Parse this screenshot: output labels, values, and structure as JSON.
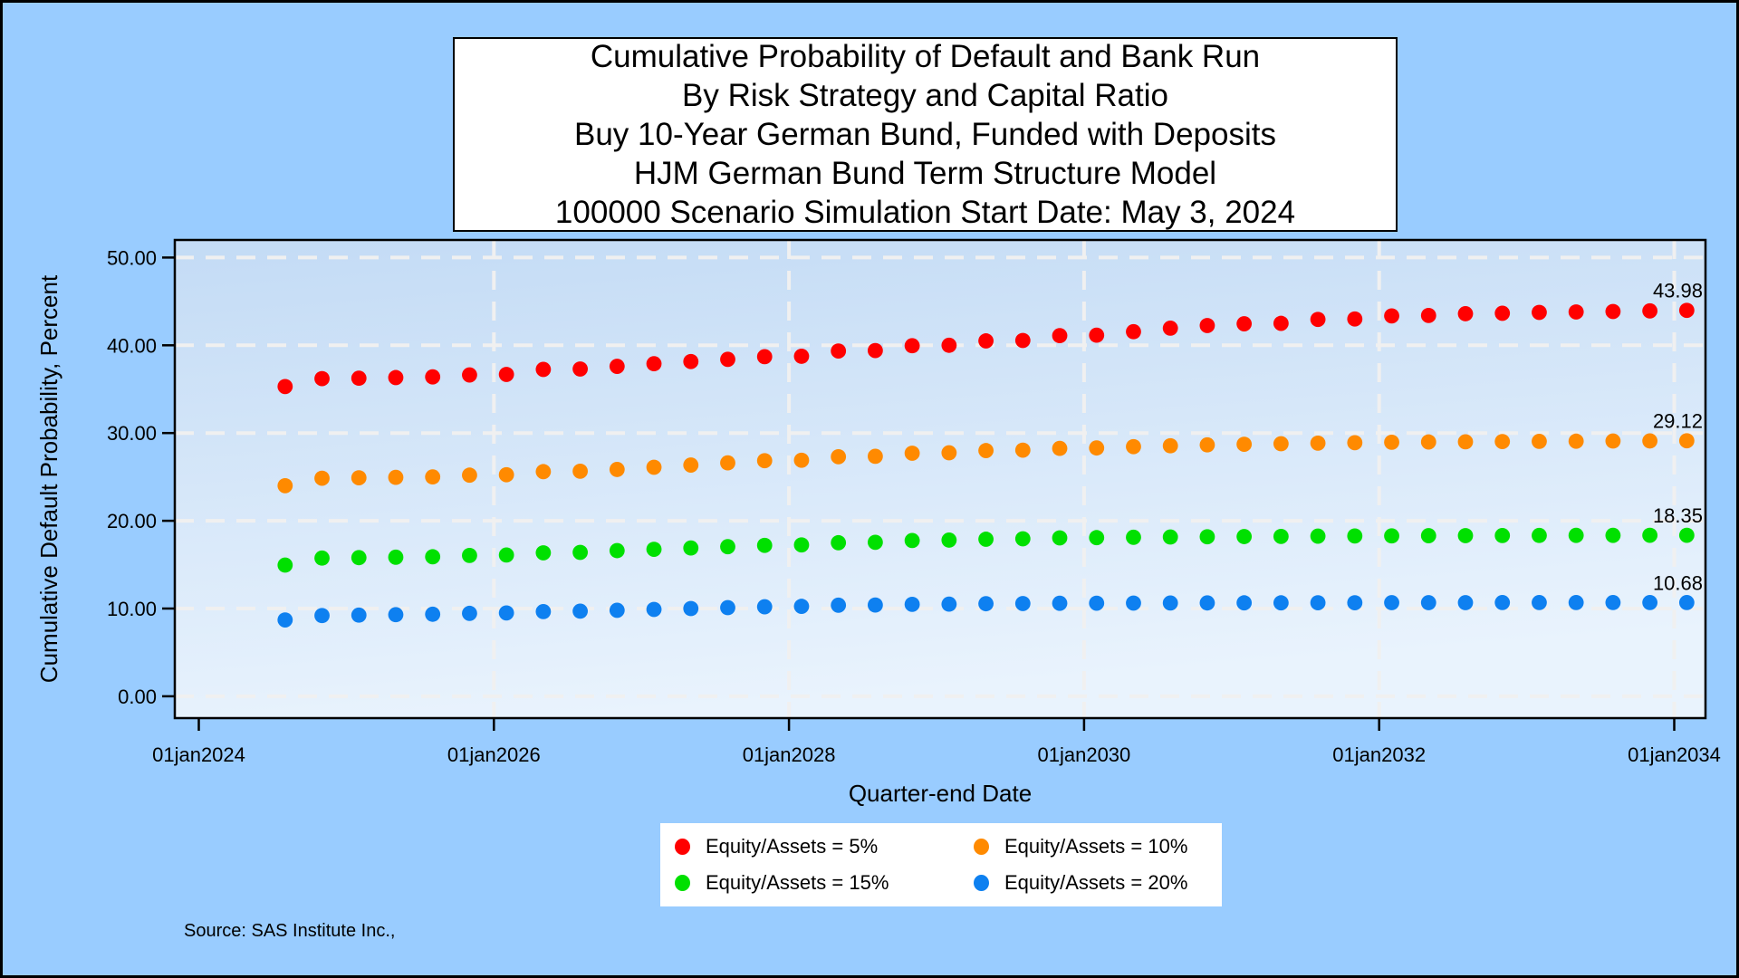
{
  "colors": {
    "page_background": "#99CCFF",
    "title_background": "#FFFFFF",
    "legend_background": "#FFFFFF",
    "plot_gradient_top": "#C3DBF5",
    "plot_gradient_bottom": "#E9F3FD",
    "gridline": "#F0F0F0",
    "frame": "#000000",
    "text": "#000000"
  },
  "chart_data": {
    "type": "scatter",
    "title_lines": [
      "Cumulative Probability of Default and Bank Run",
      "By Risk Strategy and Capital Ratio",
      "Buy 10-Year German Bund, Funded with Deposits",
      "HJM German Bund Term Structure Model",
      "100000 Scenario Simulation Start Date: May 3, 2024"
    ],
    "xlabel": "Quarter-end Date",
    "ylabel": "Cumulative Default Probability, Percent",
    "x_tick_labels": [
      "01jan2024",
      "01jan2026",
      "01jan2028",
      "01jan2030",
      "01jan2032",
      "01jan2034"
    ],
    "y_tick_labels": [
      "0.00",
      "10.00",
      "20.00",
      "30.00",
      "40.00",
      "50.00"
    ],
    "y_tick_values": [
      0,
      10,
      20,
      30,
      40,
      50
    ],
    "ylim": [
      0,
      50
    ],
    "grid": "dashed white lines; horizontal every 10 percent, vertical at even years 2026-2034",
    "legend_position": "bottom-center",
    "marker": "filled-circle",
    "x": [
      "03AUG2024",
      "03NOV2024",
      "03FEB2025",
      "03MAY2025",
      "03AUG2025",
      "03NOV2025",
      "03FEB2026",
      "03MAY2026",
      "03AUG2026",
      "03NOV2026",
      "03FEB2027",
      "03MAY2027",
      "03AUG2027",
      "03NOV2027",
      "03FEB2028",
      "03MAY2028",
      "03AUG2028",
      "03NOV2028",
      "03FEB2029",
      "03MAY2029",
      "03AUG2029",
      "03NOV2029",
      "03FEB2030",
      "03MAY2030",
      "03AUG2030",
      "03NOV2030",
      "03FEB2031",
      "03MAY2031",
      "03AUG2031",
      "03NOV2031",
      "03FEB2032",
      "03MAY2032",
      "03AUG2032",
      "03NOV2032",
      "03FEB2033",
      "03MAY2033",
      "03AUG2033",
      "03NOV2033",
      "03FEB2034"
    ],
    "series": [
      {
        "name": "Equity/Assets = 5%",
        "color": "#FF0000",
        "end_label": "43.98",
        "values": [
          35.3,
          36.2,
          36.25,
          36.32,
          36.4,
          36.62,
          36.68,
          37.25,
          37.3,
          37.6,
          37.9,
          38.15,
          38.4,
          38.7,
          38.75,
          39.35,
          39.4,
          39.95,
          40.0,
          40.5,
          40.55,
          41.1,
          41.15,
          41.55,
          41.95,
          42.25,
          42.45,
          42.5,
          42.95,
          43.0,
          43.35,
          43.4,
          43.6,
          43.65,
          43.75,
          43.8,
          43.85,
          43.92,
          43.98
        ]
      },
      {
        "name": "Equity/Assets = 10%",
        "color": "#FF8A00",
        "end_label": "29.12",
        "values": [
          24.0,
          24.85,
          24.9,
          24.95,
          25.0,
          25.2,
          25.25,
          25.6,
          25.65,
          25.85,
          26.1,
          26.35,
          26.6,
          26.85,
          26.9,
          27.3,
          27.35,
          27.7,
          27.75,
          28.0,
          28.05,
          28.25,
          28.3,
          28.45,
          28.55,
          28.65,
          28.72,
          28.78,
          28.85,
          28.9,
          28.95,
          28.98,
          29.0,
          29.03,
          29.05,
          29.07,
          29.09,
          29.1,
          29.12
        ]
      },
      {
        "name": "Equity/Assets = 15%",
        "color": "#00E000",
        "end_label": "18.35",
        "values": [
          14.95,
          15.75,
          15.8,
          15.85,
          15.9,
          16.05,
          16.1,
          16.35,
          16.4,
          16.6,
          16.75,
          16.9,
          17.05,
          17.2,
          17.25,
          17.5,
          17.55,
          17.75,
          17.8,
          17.9,
          17.95,
          18.05,
          18.08,
          18.12,
          18.15,
          18.18,
          18.2,
          18.22,
          18.25,
          18.27,
          18.28,
          18.3,
          18.31,
          18.32,
          18.33,
          18.34,
          18.34,
          18.35,
          18.35
        ]
      },
      {
        "name": "Equity/Assets = 20%",
        "color": "#0E80F0",
        "end_label": "10.68",
        "values": [
          8.7,
          9.2,
          9.25,
          9.3,
          9.35,
          9.45,
          9.5,
          9.65,
          9.7,
          9.8,
          9.9,
          10.0,
          10.1,
          10.2,
          10.25,
          10.38,
          10.4,
          10.48,
          10.5,
          10.55,
          10.57,
          10.6,
          10.61,
          10.62,
          10.63,
          10.64,
          10.65,
          10.65,
          10.66,
          10.66,
          10.67,
          10.67,
          10.67,
          10.68,
          10.68,
          10.68,
          10.68,
          10.68,
          10.68
        ]
      }
    ]
  },
  "source": "Source: SAS Institute Inc.,"
}
